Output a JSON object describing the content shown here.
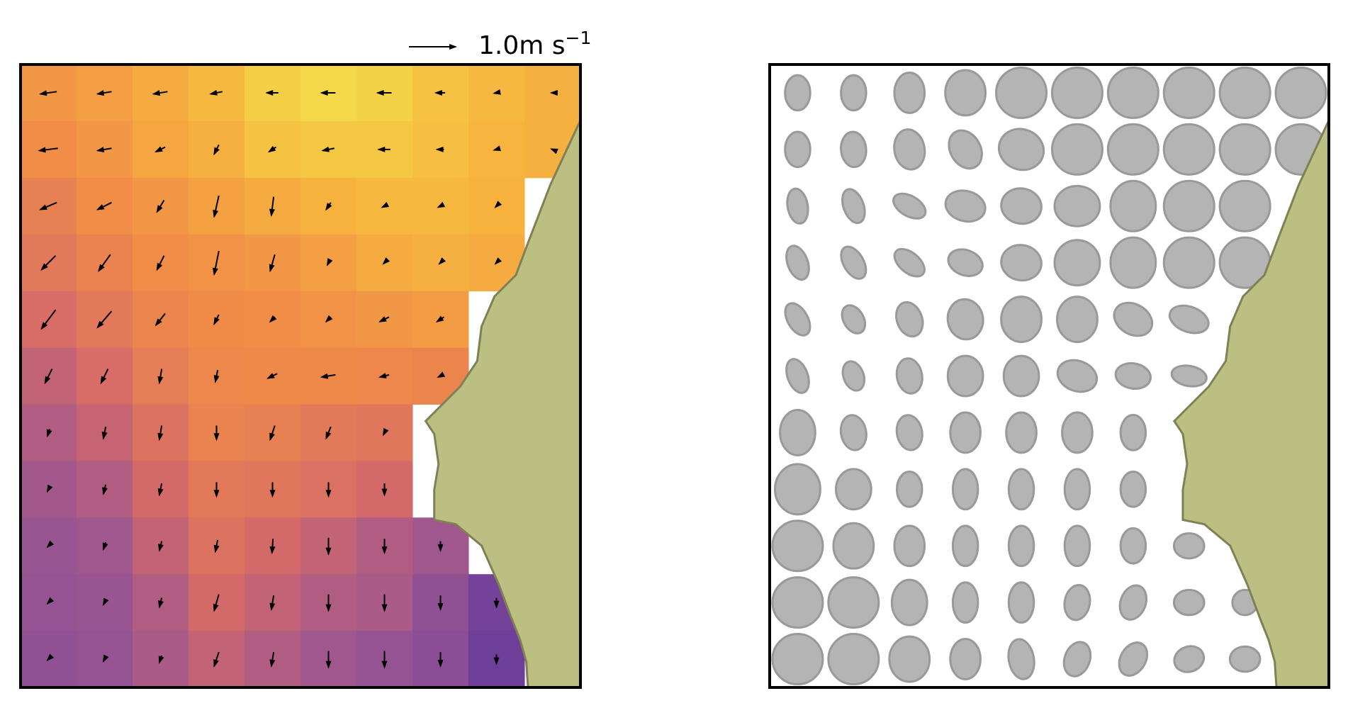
{
  "chart_data": [
    {
      "type": "quiver",
      "key": {
        "value": 1.0,
        "label": "1.0m s",
        "exponent": "−1"
      },
      "colormap": [
        "#3b2a98",
        "#6a3d9a",
        "#9a5592",
        "#d4696a",
        "#f08a48",
        "#f7b33e",
        "#f2e84e"
      ],
      "arrow_color": "#000000",
      "land_color": "#bcbf82",
      "coast_color": "#7f8055",
      "heat": [
        [
          0.72,
          0.75,
          0.8,
          0.85,
          0.92,
          0.95,
          0.93,
          0.88,
          0.85,
          0.82
        ],
        [
          0.68,
          0.72,
          0.78,
          0.82,
          0.88,
          0.9,
          0.9,
          0.87,
          0.84,
          0.82
        ],
        [
          0.62,
          0.68,
          0.72,
          0.76,
          0.8,
          0.83,
          0.85,
          0.85,
          0.83,
          null
        ],
        [
          0.58,
          0.63,
          0.68,
          0.7,
          0.72,
          0.75,
          0.8,
          0.82,
          0.8,
          null
        ],
        [
          0.52,
          0.58,
          0.64,
          0.67,
          0.68,
          0.7,
          0.72,
          0.74,
          null,
          null
        ],
        [
          0.45,
          0.52,
          0.6,
          0.65,
          0.66,
          0.66,
          0.65,
          0.64,
          null,
          null
        ],
        [
          0.4,
          0.46,
          0.55,
          0.63,
          0.62,
          0.58,
          0.57,
          null,
          null,
          null
        ],
        [
          0.36,
          0.4,
          0.5,
          0.58,
          0.57,
          0.54,
          0.5,
          null,
          null,
          null
        ],
        [
          0.33,
          0.35,
          0.45,
          0.55,
          0.5,
          0.45,
          0.4,
          0.35,
          null,
          null
        ],
        [
          0.32,
          0.33,
          0.4,
          0.5,
          0.45,
          0.4,
          0.38,
          0.3,
          0.2,
          null
        ],
        [
          0.3,
          0.32,
          0.38,
          0.45,
          0.4,
          0.35,
          0.32,
          0.28,
          0.18,
          null
        ]
      ],
      "u": [
        [
          -0.35,
          -0.3,
          -0.3,
          -0.25,
          -0.25,
          -0.3,
          -0.3,
          -0.2,
          -0.1,
          -0.05
        ],
        [
          -0.4,
          -0.3,
          -0.2,
          -0.1,
          -0.15,
          -0.25,
          -0.25,
          -0.15,
          -0.1,
          -0.05
        ],
        [
          -0.35,
          -0.3,
          -0.15,
          -0.1,
          -0.05,
          -0.1,
          -0.1,
          -0.1,
          -0.05,
          null
        ],
        [
          -0.3,
          -0.25,
          -0.15,
          -0.1,
          -0.1,
          -0.05,
          -0.05,
          -0.05,
          -0.05,
          null
        ],
        [
          -0.3,
          -0.3,
          -0.2,
          -0.1,
          -0.1,
          -0.1,
          -0.2,
          -0.15,
          null,
          null
        ],
        [
          -0.15,
          -0.15,
          -0.05,
          -0.05,
          -0.2,
          -0.3,
          -0.2,
          -0.1,
          null,
          null
        ],
        [
          -0.05,
          -0.05,
          -0.05,
          0,
          -0.1,
          -0.1,
          -0.05,
          null,
          null,
          null
        ],
        [
          -0.05,
          -0.05,
          -0.05,
          0,
          0,
          0,
          0,
          null,
          null,
          null
        ],
        [
          -0.05,
          -0.05,
          -0.05,
          -0.05,
          -0.02,
          0,
          0,
          0,
          null,
          null
        ],
        [
          -0.05,
          -0.05,
          -0.05,
          -0.1,
          -0.05,
          0,
          0,
          0,
          0,
          null
        ],
        [
          -0.05,
          -0.05,
          -0.05,
          -0.1,
          -0.05,
          0,
          0,
          0,
          0,
          null
        ]
      ],
      "v": [
        [
          -0.05,
          -0.05,
          -0.05,
          -0.05,
          0,
          0,
          0,
          0,
          -0.02,
          0
        ],
        [
          -0.05,
          -0.05,
          -0.1,
          -0.2,
          -0.1,
          -0.05,
          0,
          0,
          -0.03,
          0.02
        ],
        [
          -0.15,
          -0.15,
          -0.25,
          -0.45,
          -0.4,
          -0.15,
          -0.05,
          -0.05,
          -0.05,
          null
        ],
        [
          -0.3,
          -0.35,
          -0.3,
          -0.5,
          -0.35,
          -0.1,
          -0.05,
          -0.05,
          -0.05,
          null
        ],
        [
          -0.4,
          -0.35,
          -0.25,
          -0.2,
          -0.1,
          -0.1,
          -0.1,
          -0.1,
          null,
          null
        ],
        [
          -0.3,
          -0.3,
          -0.3,
          -0.25,
          -0.1,
          -0.05,
          -0.05,
          -0.05,
          null,
          null
        ],
        [
          -0.15,
          -0.25,
          -0.3,
          -0.3,
          -0.3,
          -0.25,
          -0.1,
          null,
          null,
          null
        ],
        [
          -0.1,
          -0.2,
          -0.25,
          -0.3,
          -0.3,
          -0.3,
          -0.25,
          null,
          null,
          null
        ],
        [
          -0.05,
          -0.15,
          -0.2,
          -0.25,
          -0.3,
          -0.35,
          -0.3,
          -0.2,
          null,
          null
        ],
        [
          -0.05,
          -0.1,
          -0.2,
          -0.35,
          -0.3,
          -0.35,
          -0.35,
          -0.3,
          -0.2,
          null
        ],
        [
          -0.05,
          -0.1,
          -0.15,
          -0.3,
          -0.3,
          -0.35,
          -0.35,
          -0.3,
          -0.2,
          null
        ]
      ]
    },
    {
      "type": "ellipse",
      "fill": "#b4b4b4",
      "edge": "#999999",
      "land_color": "#bcbf82",
      "coast_color": "#7f8055",
      "major": [
        [
          0.7,
          0.7,
          0.8,
          0.9,
          1,
          1,
          1,
          1,
          1,
          1
        ],
        [
          0.7,
          0.7,
          0.8,
          0.8,
          0.9,
          1,
          1,
          1,
          1,
          1
        ],
        [
          0.7,
          0.7,
          0.7,
          0.8,
          0.8,
          0.9,
          1,
          1,
          1,
          null
        ],
        [
          0.7,
          0.7,
          0.7,
          0.7,
          0.8,
          0.9,
          1,
          1,
          1,
          null
        ],
        [
          0.7,
          0.6,
          0.7,
          0.8,
          0.9,
          0.9,
          0.8,
          0.8,
          null,
          null
        ],
        [
          0.7,
          0.6,
          0.7,
          0.8,
          0.8,
          0.8,
          0.7,
          0.7,
          null,
          null
        ],
        [
          0.9,
          0.7,
          0.7,
          0.8,
          0.8,
          0.8,
          0.7,
          null,
          null,
          null
        ],
        [
          1,
          0.8,
          0.7,
          0.8,
          0.8,
          0.8,
          0.7,
          null,
          null,
          null
        ],
        [
          1,
          0.9,
          0.8,
          0.8,
          0.8,
          0.8,
          0.7,
          0.6,
          null,
          null
        ],
        [
          1,
          1,
          0.9,
          0.8,
          0.8,
          0.7,
          0.7,
          0.6,
          0.5,
          null
        ],
        [
          1,
          1,
          0.9,
          0.8,
          0.8,
          0.7,
          0.7,
          0.6,
          0.6,
          null
        ]
      ],
      "minor": [
        [
          0.5,
          0.5,
          0.6,
          0.8,
          1,
          1,
          1,
          1,
          1,
          1
        ],
        [
          0.5,
          0.5,
          0.6,
          0.6,
          0.8,
          1,
          1,
          1,
          1,
          1
        ],
        [
          0.4,
          0.4,
          0.4,
          0.6,
          0.7,
          0.8,
          0.9,
          1,
          1,
          null
        ],
        [
          0.4,
          0.4,
          0.4,
          0.5,
          0.7,
          0.9,
          0.9,
          1,
          1,
          null
        ],
        [
          0.4,
          0.4,
          0.5,
          0.7,
          0.8,
          0.8,
          0.6,
          0.5,
          null,
          null
        ],
        [
          0.4,
          0.4,
          0.5,
          0.7,
          0.7,
          0.6,
          0.5,
          0.4,
          null,
          null
        ],
        [
          0.7,
          0.5,
          0.5,
          0.6,
          0.6,
          0.6,
          0.5,
          null,
          null,
          null
        ],
        [
          0.9,
          0.7,
          0.5,
          0.5,
          0.5,
          0.5,
          0.5,
          null,
          null,
          null
        ],
        [
          1,
          0.8,
          0.6,
          0.5,
          0.5,
          0.5,
          0.5,
          0.5,
          null,
          null
        ],
        [
          1,
          1,
          0.7,
          0.5,
          0.5,
          0.5,
          0.5,
          0.5,
          0.5,
          null
        ],
        [
          1,
          1,
          0.8,
          0.6,
          0.5,
          0.5,
          0.5,
          0.5,
          0.5,
          null
        ]
      ],
      "angle": [
        [
          90,
          90,
          90,
          90,
          0,
          0,
          0,
          0,
          0,
          0
        ],
        [
          90,
          95,
          100,
          120,
          160,
          0,
          0,
          0,
          0,
          0
        ],
        [
          100,
          110,
          150,
          165,
          170,
          0,
          90,
          0,
          0,
          null
        ],
        [
          110,
          120,
          140,
          160,
          170,
          90,
          90,
          0,
          0,
          null
        ],
        [
          120,
          120,
          110,
          100,
          90,
          90,
          150,
          160,
          null,
          null
        ],
        [
          110,
          110,
          100,
          90,
          90,
          160,
          170,
          170,
          null,
          null
        ],
        [
          90,
          100,
          100,
          90,
          90,
          90,
          90,
          null,
          null,
          null
        ],
        [
          90,
          90,
          90,
          90,
          90,
          90,
          90,
          null,
          null,
          null
        ],
        [
          0,
          90,
          90,
          90,
          90,
          90,
          90,
          0,
          null,
          null
        ],
        [
          0,
          0,
          90,
          90,
          90,
          80,
          70,
          0,
          0,
          null
        ],
        [
          0,
          0,
          90,
          90,
          100,
          70,
          60,
          20,
          0,
          null
        ]
      ]
    }
  ]
}
